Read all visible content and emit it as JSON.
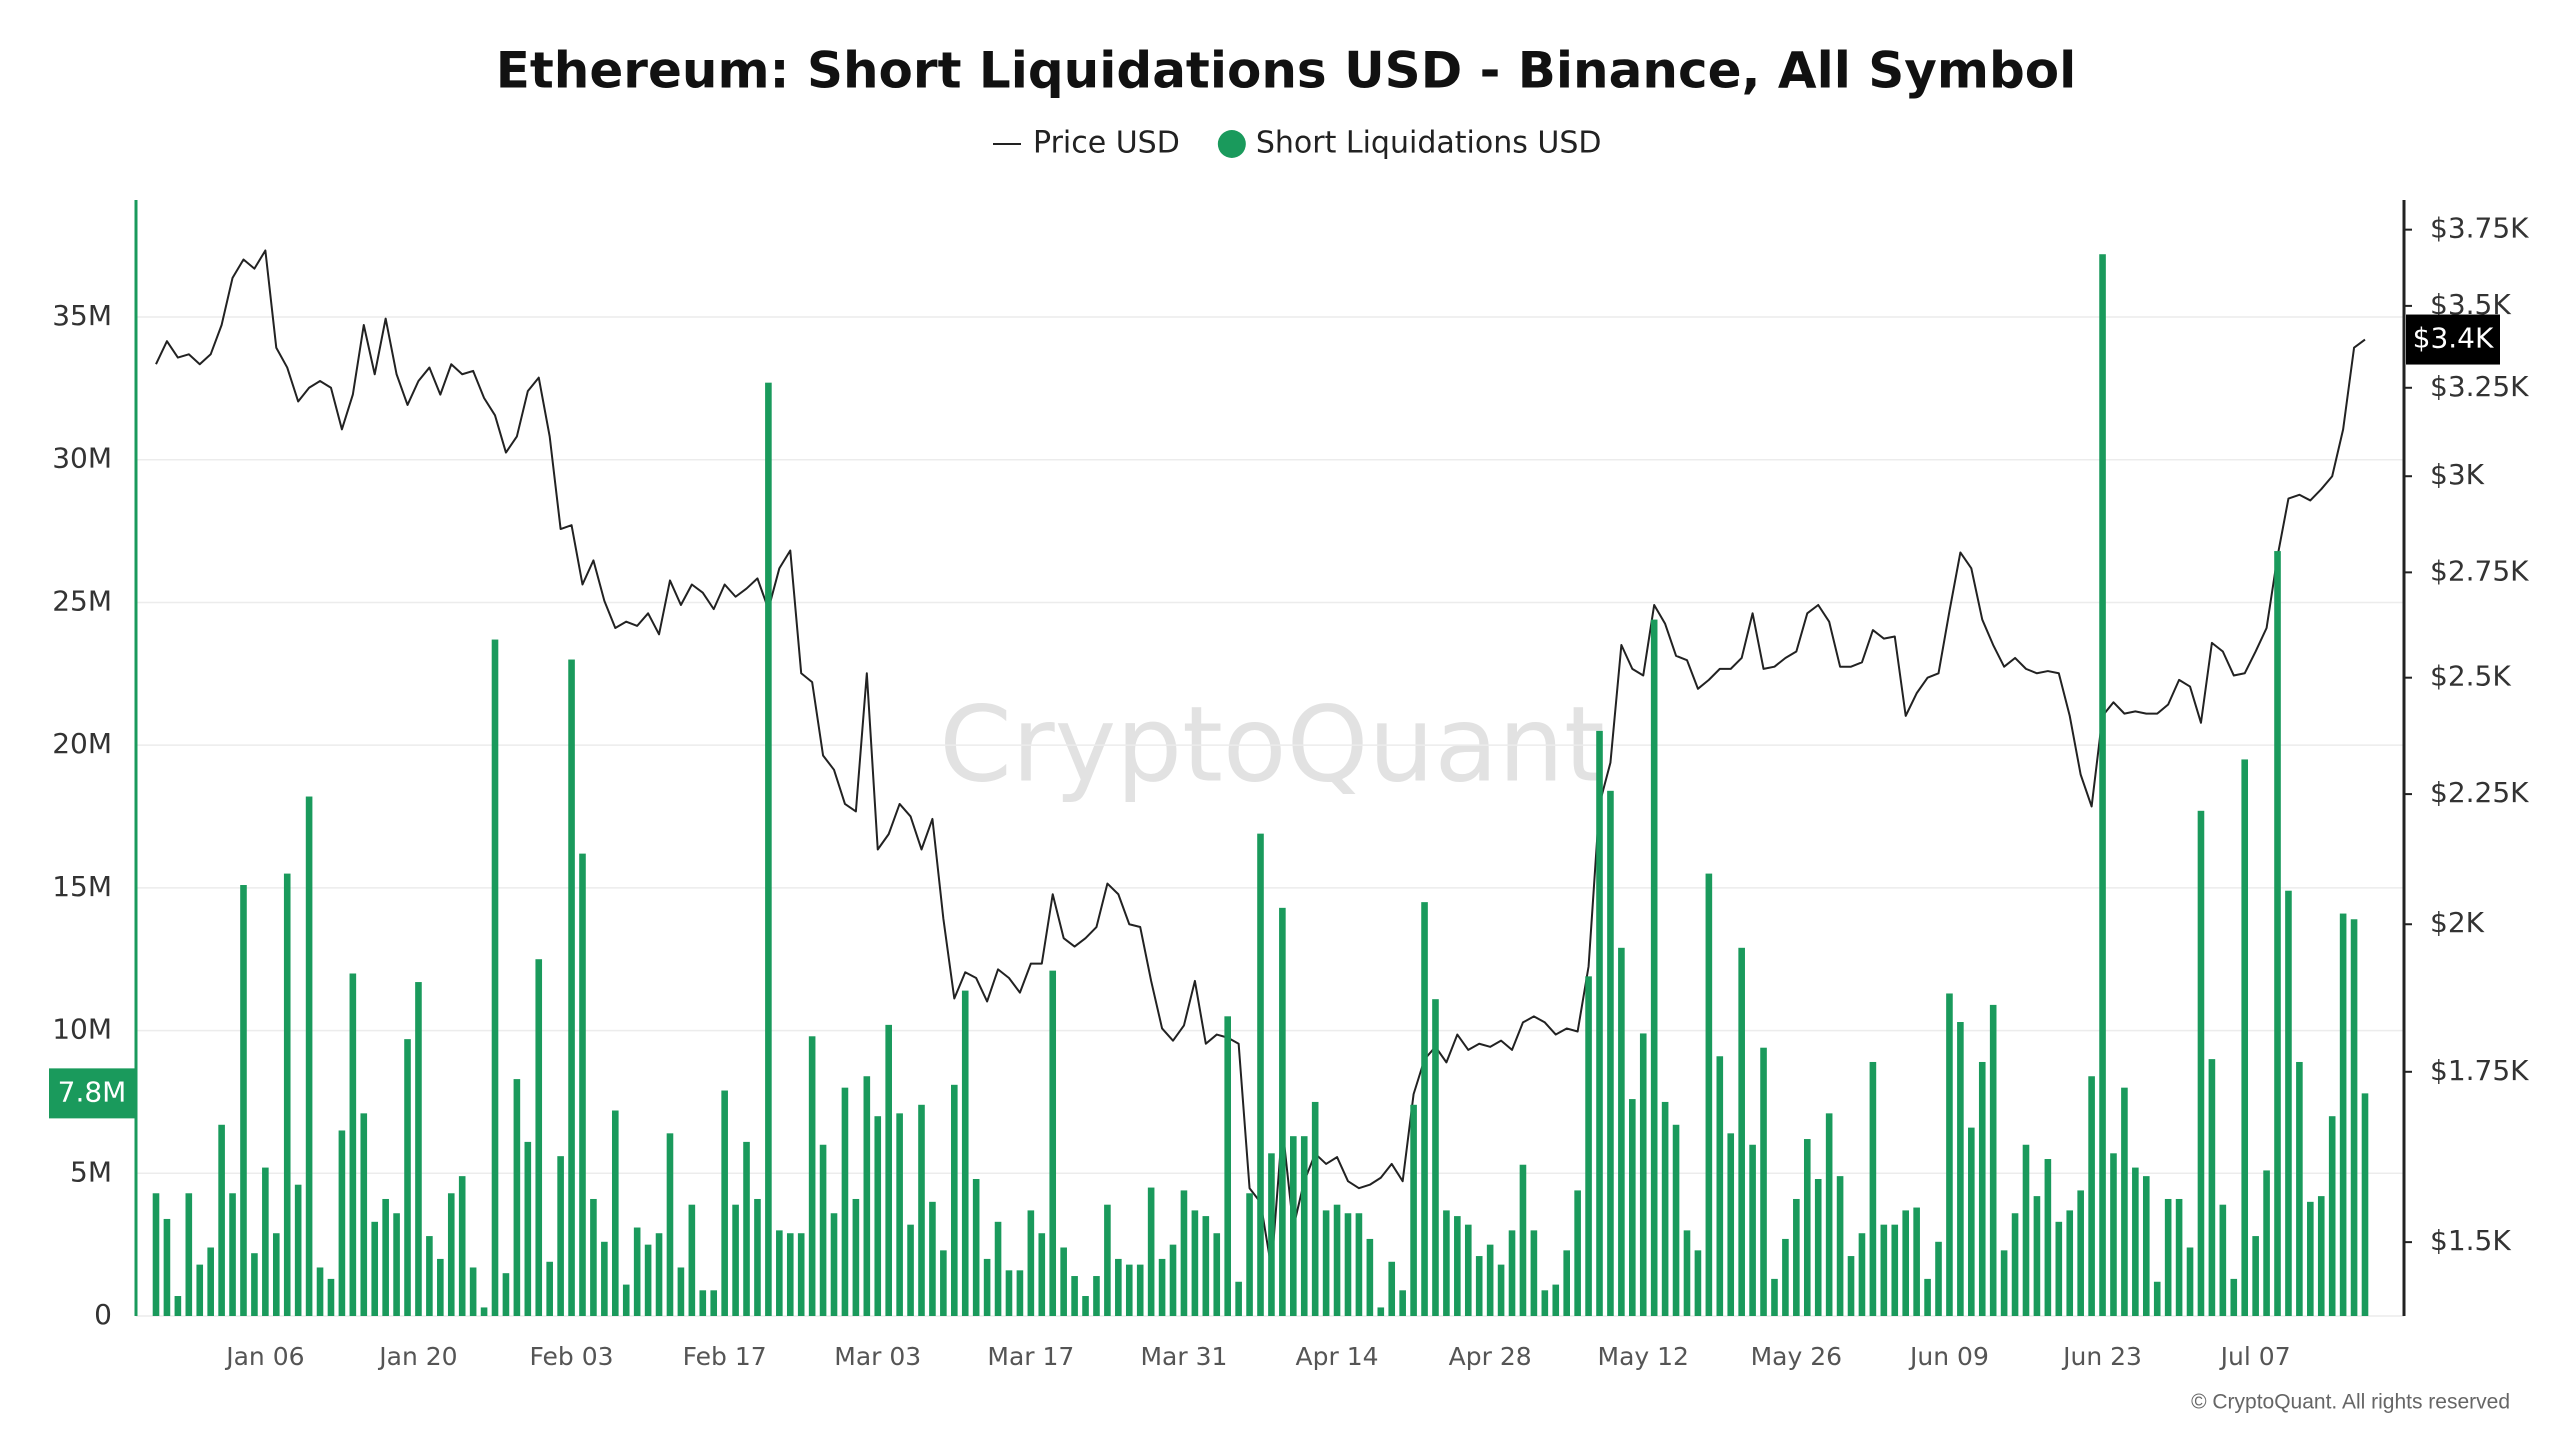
{
  "chart_data": {
    "type": "combo",
    "title": "Ethereum: Short Liquidations USD - Binance, All Symbol",
    "watermark": "CryptoQuant",
    "footer": "© CryptoQuant. All rights reserved",
    "categories": [
      null,
      null,
      null,
      null,
      null,
      null,
      null,
      null,
      null,
      null,
      "Jan 06",
      null,
      null,
      null,
      null,
      null,
      null,
      null,
      null,
      null,
      null,
      null,
      null,
      null,
      "Jan 20",
      null,
      null,
      null,
      null,
      null,
      null,
      null,
      null,
      null,
      null,
      null,
      null,
      null,
      "Feb 03",
      null,
      null,
      null,
      null,
      null,
      null,
      null,
      null,
      null,
      null,
      null,
      null,
      null,
      "Feb 17",
      null,
      null,
      null,
      null,
      null,
      null,
      null,
      null,
      null,
      null,
      null,
      null,
      null,
      "Mar 03",
      null,
      null,
      null,
      null,
      null,
      null,
      null,
      null,
      null,
      null,
      null,
      null,
      null,
      "Mar 17",
      null,
      null,
      null,
      null,
      null,
      null,
      null,
      null,
      null,
      null,
      null,
      null,
      null,
      "Mar 31",
      null,
      null,
      null,
      null,
      null,
      null,
      null,
      null,
      null,
      null,
      null,
      null,
      null,
      "Apr 14",
      null,
      null,
      null,
      null,
      null,
      null,
      null,
      null,
      null,
      null,
      null,
      null,
      null,
      "Apr 28",
      null,
      null,
      null,
      null,
      null,
      null,
      null,
      null,
      null,
      null,
      null,
      null,
      null,
      "May 12",
      null,
      null,
      null,
      null,
      null,
      null,
      null,
      null,
      null,
      null,
      null,
      null,
      null,
      "May 26",
      null,
      null,
      null,
      null,
      null,
      null,
      null,
      null,
      null,
      null,
      null,
      null,
      null,
      "Jun 09",
      null,
      null,
      null,
      null,
      null,
      null,
      null,
      null,
      null,
      null,
      null,
      null,
      null,
      "Jun 23",
      null,
      null,
      null,
      null,
      null,
      null,
      null,
      null,
      null,
      null,
      null,
      null,
      null,
      "Jul 07",
      null,
      null,
      null,
      null,
      null,
      null,
      null,
      null,
      null,
      null
    ],
    "series": [
      {
        "name": "Price USD",
        "type": "line",
        "axis": "y2",
        "color": "#222222",
        "last_value_label": "$3.4K",
        "values": [
          3320,
          3390,
          3340,
          3350,
          3320,
          3350,
          3440,
          3590,
          3650,
          3620,
          3680,
          3370,
          3310,
          3210,
          3250,
          3270,
          3250,
          3130,
          3230,
          3440,
          3290,
          3460,
          3290,
          3200,
          3270,
          3310,
          3230,
          3320,
          3290,
          3300,
          3220,
          3170,
          3065,
          3110,
          3240,
          3280,
          3110,
          2860,
          2870,
          2720,
          2780,
          2680,
          2615,
          2630,
          2620,
          2650,
          2600,
          2730,
          2670,
          2720,
          2700,
          2660,
          2720,
          2690,
          2710,
          2735,
          2660,
          2760,
          2805,
          2510,
          2490,
          2330,
          2300,
          2230,
          2215,
          2510,
          2140,
          2170,
          2230,
          2205,
          2140,
          2200,
          2010,
          1870,
          1915,
          1905,
          1865,
          1920,
          1905,
          1880,
          1930,
          1930,
          2055,
          1975,
          1960,
          1975,
          1995,
          2075,
          2055,
          2000,
          1995,
          1900,
          1820,
          1800,
          1825,
          1900,
          1795,
          1810,
          1805,
          1795,
          1575,
          1555,
          1465,
          1665,
          1520,
          1585,
          1625,
          1610,
          1620,
          1585,
          1575,
          1580,
          1590,
          1610,
          1585,
          1715,
          1770,
          1790,
          1765,
          1810,
          1785,
          1795,
          1790,
          1800,
          1785,
          1830,
          1840,
          1830,
          1810,
          1820,
          1815,
          1925,
          2230,
          2315,
          2575,
          2520,
          2505,
          2670,
          2625,
          2550,
          2540,
          2475,
          2495,
          2520,
          2520,
          2545,
          2650,
          2520,
          2525,
          2545,
          2560,
          2650,
          2670,
          2630,
          2525,
          2525,
          2535,
          2610,
          2590,
          2595,
          2415,
          2465,
          2500,
          2510,
          2655,
          2800,
          2760,
          2635,
          2575,
          2525,
          2545,
          2520,
          2510,
          2515,
          2510,
          2415,
          2290,
          2225,
          2415,
          2445,
          2420,
          2425,
          2420,
          2420,
          2440,
          2495,
          2480,
          2400,
          2580,
          2560,
          2505,
          2510,
          2560,
          2615,
          2790,
          2940,
          2950,
          2935,
          2965,
          3000,
          3130,
          3370,
          3395
        ]
      },
      {
        "name": "Short Liquidations USD",
        "type": "bar",
        "axis": "y",
        "color": "#1a9a5c",
        "last_value_label": "7.8M",
        "values": [
          4300000,
          3400000,
          700000,
          4300000,
          1800000,
          2400000,
          6700000,
          4300000,
          15100000,
          2200000,
          5200000,
          2900000,
          15500000,
          4600000,
          18200000,
          1700000,
          1300000,
          6500000,
          12000000,
          7100000,
          3300000,
          4100000,
          3600000,
          9700000,
          11700000,
          2800000,
          2000000,
          4300000,
          4900000,
          1700000,
          300000,
          23700000,
          1500000,
          8300000,
          6100000,
          12500000,
          1900000,
          5600000,
          23000000,
          16200000,
          4100000,
          2600000,
          7200000,
          1100000,
          3100000,
          2500000,
          2900000,
          6400000,
          1700000,
          3900000,
          900000,
          900000,
          7900000,
          3900000,
          6100000,
          4100000,
          32700000,
          3000000,
          2900000,
          2900000,
          9800000,
          6000000,
          3600000,
          8000000,
          4100000,
          8400000,
          7000000,
          10200000,
          7100000,
          3200000,
          7400000,
          4000000,
          2300000,
          8100000,
          11400000,
          4800000,
          2000000,
          3300000,
          1600000,
          1600000,
          3700000,
          2900000,
          12100000,
          2400000,
          1400000,
          700000,
          1400000,
          3900000,
          2000000,
          1800000,
          1800000,
          4500000,
          2000000,
          2500000,
          4400000,
          3700000,
          3500000,
          2900000,
          10500000,
          1200000,
          4300000,
          16900000,
          5700000,
          14300000,
          6300000,
          6300000,
          7500000,
          3700000,
          3900000,
          3600000,
          3600000,
          2700000,
          300000,
          1900000,
          900000,
          7400000,
          14500000,
          11100000,
          3700000,
          3500000,
          3200000,
          2100000,
          2500000,
          1800000,
          3000000,
          5300000,
          3000000,
          900000,
          1100000,
          2300000,
          4400000,
          11900000,
          20500000,
          18400000,
          12900000,
          7600000,
          9900000,
          24400000,
          7500000,
          6700000,
          3000000,
          2300000,
          15500000,
          9100000,
          6400000,
          12900000,
          6000000,
          9400000,
          1300000,
          2700000,
          4100000,
          6200000,
          4800000,
          7100000,
          4900000,
          2100000,
          2900000,
          8900000,
          3200000,
          3200000,
          3700000,
          3800000,
          1300000,
          2600000,
          11300000,
          10300000,
          6600000,
          8900000,
          10900000,
          2300000,
          3600000,
          6000000,
          4200000,
          5500000,
          3300000,
          3700000,
          4400000,
          8400000,
          37200000,
          5700000,
          8000000,
          5200000,
          4900000,
          1200000,
          4100000,
          4100000,
          2400000,
          17700000,
          9000000,
          3900000,
          1300000,
          19500000,
          2800000,
          5100000,
          26800000,
          14900000,
          8900000,
          4000000,
          4200000,
          7000000,
          14100000,
          13900000,
          7800000
        ]
      }
    ],
    "ylim": [
      0,
      39100000
    ],
    "yticks": [
      0,
      {
        "value": 5000000,
        "label": "5M"
      },
      {
        "value": 10000000,
        "label": "10M"
      },
      {
        "value": 15000000,
        "label": "15M"
      },
      {
        "value": 20000000,
        "label": "20M"
      },
      {
        "value": 25000000,
        "label": "25M"
      },
      {
        "value": 30000000,
        "label": "30M"
      },
      {
        "value": 35000000,
        "label": "35M"
      }
    ],
    "y2lim": [
      1403,
      3852
    ],
    "y2scale": "log",
    "y2ticks": [
      {
        "value": 1500,
        "label": "$1.5K"
      },
      {
        "value": 1750,
        "label": "$1.75K"
      },
      {
        "value": 2000,
        "label": "$2K"
      },
      {
        "value": 2250,
        "label": "$2.25K"
      },
      {
        "value": 2500,
        "label": "$2.5K"
      },
      {
        "value": 2750,
        "label": "$2.75K"
      },
      {
        "value": 3000,
        "label": "$3K"
      },
      {
        "value": 3250,
        "label": "$3.25K"
      },
      {
        "value": 3500,
        "label": "$3.5K"
      },
      {
        "value": 3750,
        "label": "$3.75K"
      }
    ],
    "grid": true,
    "legend": "top"
  }
}
